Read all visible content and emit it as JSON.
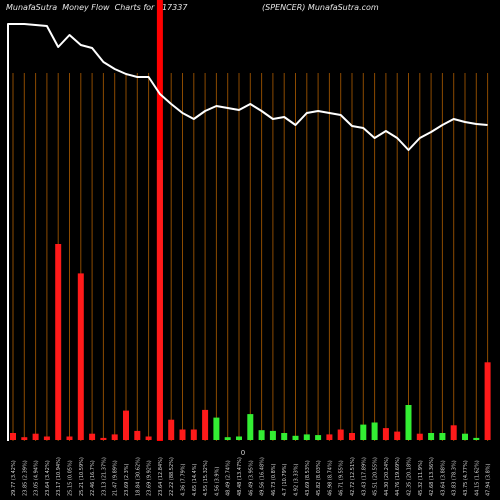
{
  "header": {
    "left_text": "MunafaSutra  Money Flow  Charts for 517337",
    "right_text": "(SPENCER) MunafaSutra.com"
  },
  "chart_data": {
    "type": "bar",
    "title": "MunafaSutra  Money Flow  Charts for 517337",
    "subtitle": "(SPENCER) MunafaSutra.com",
    "zero_label": "0",
    "colors": {
      "background": "#000000",
      "gridline": "#8b4a00",
      "up": "#33ee33",
      "down": "#ff1a1a",
      "line": "#ffffff",
      "highlight": "#ff0000"
    },
    "highlight_index": 13,
    "categories": [
      "29.77 (3.42%)",
      "23.85 (2.39%)",
      "23.05 (4.94%)",
      "23.64 (3.42%)",
      "23.17 (10.94%)",
      "25.15 (0.05%)",
      "25.21 (10.59%)",
      "22.46 (16.7%)",
      "23.13 (21.37%)",
      "21.47 (9.89%)",
      "23.69 (2.3%)",
      "18.84 (30.62%)",
      "23.69 (9.92%)",
      "23.64 (12.84%)",
      "22.22 (88.52%)",
      "4.36 (7.79%)",
      "4.65 (14.4%)",
      "4.55 (15.32%)",
      "4.56 (3.9%)",
      "48.49 (2.74%)",
      "48.48 (13.47%)",
      "46.49 (3.95%)",
      "49.56 (16.48%)",
      "46.73 (0.8%)",
      "4.7 (10.79%)",
      "4.92 (3.33%)",
      "43.69 (8.53%)",
      "45.82 (8.03%)",
      "46.98 (8.74%)",
      "46.71 (9.55%)",
      "42.72 (12.51%)",
      "43.43 (17.89%)",
      "45.51 (20.55%)",
      "44.30 (20.24%)",
      "44.76 (19.69%)",
      "42.35 (20.18%)",
      "45.32 (11.9%)",
      "42.68 (13.36%)",
      "43.64 (3.88%)",
      "43.83 (78.3%)",
      "43.75 (4.77%)",
      "44.15 (1.62%)",
      "47.94 (3.8%)"
    ],
    "series": [
      {
        "values": [
          -10,
          -4,
          -9,
          -5,
          -280,
          -5,
          -238,
          -9,
          -3,
          -8,
          -42,
          -13,
          -5,
          -400,
          -29,
          -15,
          -15,
          -43,
          32,
          4,
          5,
          37,
          14,
          13,
          10,
          6,
          8,
          7,
          -8,
          -15,
          -10,
          22,
          25,
          -17,
          -12,
          50,
          -9,
          10,
          10,
          -21,
          9,
          3,
          -111
        ]
      }
    ],
    "line": [
      419,
      419,
      418,
      417,
      396,
      408,
      398,
      395,
      381,
      374,
      369,
      366,
      366,
      349,
      339,
      330,
      324,
      332,
      337,
      335,
      333,
      339,
      332,
      324,
      326,
      318,
      330,
      332,
      330,
      328,
      317,
      315,
      305,
      312,
      305,
      293,
      305,
      311,
      318,
      324,
      321,
      319,
      318
    ]
  }
}
